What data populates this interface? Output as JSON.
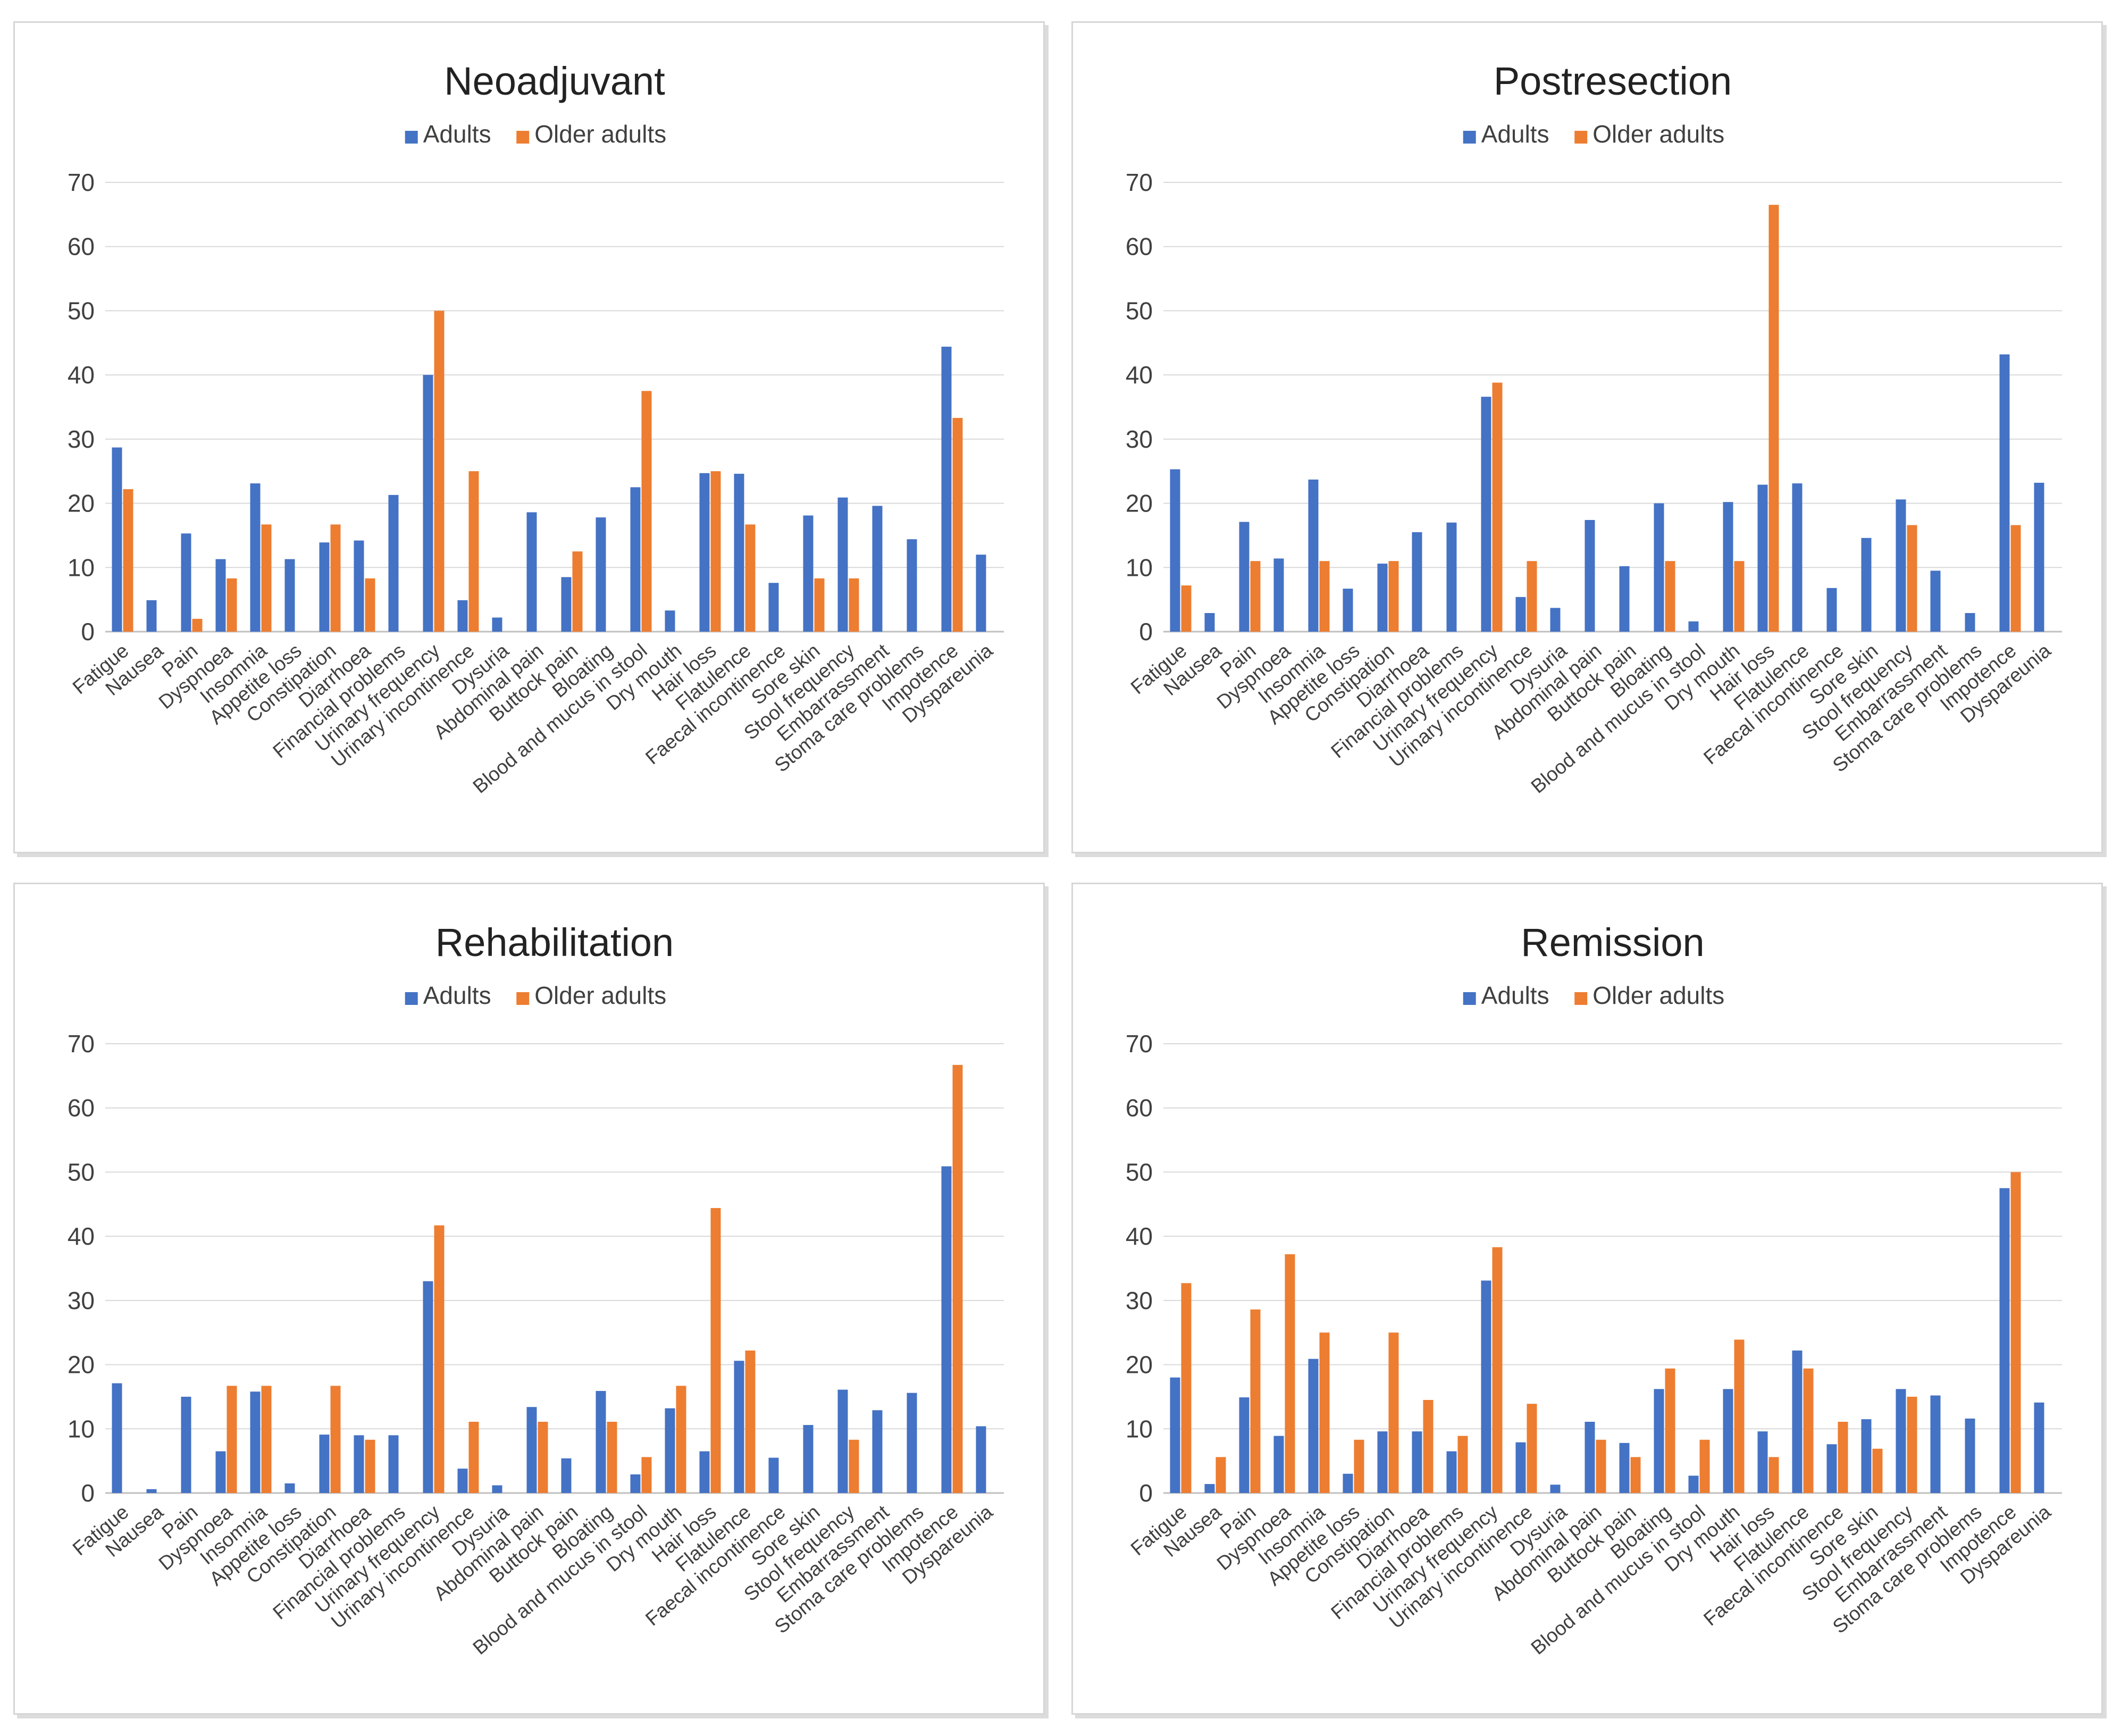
{
  "colors": {
    "adults": "#4472C4",
    "older_adults": "#ED7D31",
    "gridline": "#d9d9d9",
    "axis": "#bfbfbf",
    "text": "#404040"
  },
  "chart_data": [
    {
      "type": "bar",
      "title": "Neoadjuvant",
      "categories": [
        "Fatigue",
        "Nausea",
        "Pain",
        "Dyspnoea",
        "Insomnia",
        "Appetite loss",
        "Constipation",
        "Diarrhoea",
        "Financial problems",
        "Urinary frequency",
        "Urinary incontinence",
        "Dysuria",
        "Abdominal pain",
        "Buttock pain",
        "Bloating",
        "Blood and mucus in stool",
        "Dry mouth",
        "Hair loss",
        "Flatulence",
        "Faecal incontinence",
        "Sore skin",
        "Stool frequency",
        "Embarrassment",
        "Stoma care problems",
        "Impotence",
        "Dyspareunia"
      ],
      "series": [
        {
          "name": "Adults",
          "values": [
            28.7,
            4.9,
            15.3,
            11.3,
            23.1,
            11.3,
            13.9,
            14.2,
            21.3,
            40.0,
            4.9,
            2.2,
            18.6,
            8.5,
            17.8,
            22.5,
            3.3,
            24.7,
            24.6,
            7.6,
            18.1,
            20.9,
            19.6,
            14.4,
            44.4,
            12.0
          ]
        },
        {
          "name": "Older adults",
          "values": [
            22.2,
            0,
            2.0,
            8.3,
            16.7,
            0,
            16.7,
            8.3,
            0,
            50.0,
            25.0,
            0,
            0,
            12.5,
            0,
            37.5,
            0,
            25.0,
            16.7,
            0,
            8.3,
            8.3,
            0,
            0,
            33.3,
            0
          ]
        }
      ],
      "xlabel": "",
      "ylabel": "",
      "ylim": [
        0,
        70
      ],
      "yticks": [
        0,
        10,
        20,
        30,
        40,
        50,
        60,
        70
      ],
      "legend": "top-center",
      "grid": true
    },
    {
      "type": "bar",
      "title": "Postresection",
      "categories": [
        "Fatigue",
        "Nausea",
        "Pain",
        "Dyspnoea",
        "Insomnia",
        "Appetite loss",
        "Constipation",
        "Diarrhoea",
        "Financial problems",
        "Urinary frequency",
        "Urinary incontinence",
        "Dysuria",
        "Abdominal pain",
        "Buttock pain",
        "Bloating",
        "Blood and mucus in stool",
        "Dry mouth",
        "Hair loss",
        "Flatulence",
        "Faecal incontinence",
        "Sore skin",
        "Stool frequency",
        "Embarrassment",
        "Stoma care problems",
        "Impotence",
        "Dyspareunia"
      ],
      "series": [
        {
          "name": "Adults",
          "values": [
            25.3,
            2.9,
            17.1,
            11.4,
            23.7,
            6.7,
            10.6,
            15.5,
            17.0,
            36.6,
            5.4,
            3.7,
            17.4,
            10.2,
            20.0,
            1.6,
            20.2,
            22.9,
            23.1,
            6.8,
            14.6,
            20.6,
            9.5,
            2.9,
            43.2,
            23.2
          ]
        },
        {
          "name": "Older adults",
          "values": [
            7.2,
            0,
            11.0,
            0,
            11.0,
            0,
            11.0,
            0,
            0,
            38.8,
            11.0,
            0,
            0,
            0,
            11.0,
            0,
            11.0,
            66.5,
            0,
            0,
            0,
            16.6,
            0,
            0,
            16.6,
            0
          ]
        }
      ],
      "xlabel": "",
      "ylabel": "",
      "ylim": [
        0,
        70
      ],
      "yticks": [
        0,
        10,
        20,
        30,
        40,
        50,
        60,
        70
      ],
      "legend": "top-center",
      "grid": true
    },
    {
      "type": "bar",
      "title": "Rehabilitation",
      "categories": [
        "Fatigue",
        "Nausea",
        "Pain",
        "Dyspnoea",
        "Insomnia",
        "Appetite loss",
        "Constipation",
        "Diarrhoea",
        "Financial problems",
        "Urinary frequency",
        "Urinary incontinence",
        "Dysuria",
        "Abdominal pain",
        "Buttock pain",
        "Bloating",
        "Blood and mucus in stool",
        "Dry mouth",
        "Hair loss",
        "Flatulence",
        "Faecal incontinence",
        "Sore skin",
        "Stool frequency",
        "Embarrassment",
        "Stoma care problems",
        "Impotence",
        "Dyspareunia"
      ],
      "series": [
        {
          "name": "Adults",
          "values": [
            17.1,
            0.6,
            15.0,
            6.5,
            15.8,
            1.5,
            9.1,
            9.0,
            9.0,
            33.0,
            3.8,
            1.2,
            13.4,
            5.4,
            15.9,
            2.9,
            13.2,
            6.5,
            20.6,
            5.5,
            10.6,
            16.1,
            12.9,
            15.6,
            50.9,
            10.4
          ]
        },
        {
          "name": "Older adults",
          "values": [
            0,
            0,
            0,
            16.7,
            16.7,
            0,
            16.7,
            8.3,
            0,
            41.7,
            11.1,
            0,
            11.1,
            0,
            11.1,
            5.6,
            16.7,
            44.4,
            22.2,
            0,
            0,
            8.3,
            0,
            0,
            66.7,
            0
          ]
        }
      ],
      "xlabel": "",
      "ylabel": "",
      "ylim": [
        0,
        70
      ],
      "yticks": [
        0,
        10,
        20,
        30,
        40,
        50,
        60,
        70
      ],
      "legend": "top-center",
      "grid": true
    },
    {
      "type": "bar",
      "title": "Remission",
      "categories": [
        "Fatigue",
        "Nausea",
        "Pain",
        "Dyspnoea",
        "Insomnia",
        "Appetite loss",
        "Constipation",
        "Diarrhoea",
        "Financial problems",
        "Urinary frequency",
        "Urinary incontinence",
        "Dysuria",
        "Abdominal pain",
        "Buttock pain",
        "Bloating",
        "Blood and mucus in stool",
        "Dry mouth",
        "Hair loss",
        "Flatulence",
        "Faecal incontinence",
        "Sore skin",
        "Stool frequency",
        "Embarrassment",
        "Stoma care problems",
        "Impotence",
        "Dyspareunia"
      ],
      "series": [
        {
          "name": "Adults",
          "values": [
            18.0,
            1.4,
            14.9,
            8.9,
            20.9,
            3.0,
            9.6,
            9.6,
            6.5,
            33.1,
            7.9,
            1.3,
            11.1,
            7.8,
            16.2,
            2.7,
            16.2,
            9.6,
            22.2,
            7.6,
            11.5,
            16.2,
            15.2,
            11.6,
            47.5,
            14.1
          ]
        },
        {
          "name": "Older adults",
          "values": [
            32.7,
            5.6,
            28.6,
            37.2,
            25.0,
            8.3,
            25.0,
            14.5,
            8.9,
            38.3,
            13.9,
            0,
            8.3,
            5.6,
            19.4,
            8.3,
            23.9,
            5.6,
            19.4,
            11.1,
            6.9,
            15.0,
            0,
            0,
            50.0,
            0
          ]
        }
      ],
      "xlabel": "",
      "ylabel": "",
      "ylim": [
        0,
        70
      ],
      "yticks": [
        0,
        10,
        20,
        30,
        40,
        50,
        60,
        70
      ],
      "legend": "top-center",
      "grid": true
    }
  ]
}
